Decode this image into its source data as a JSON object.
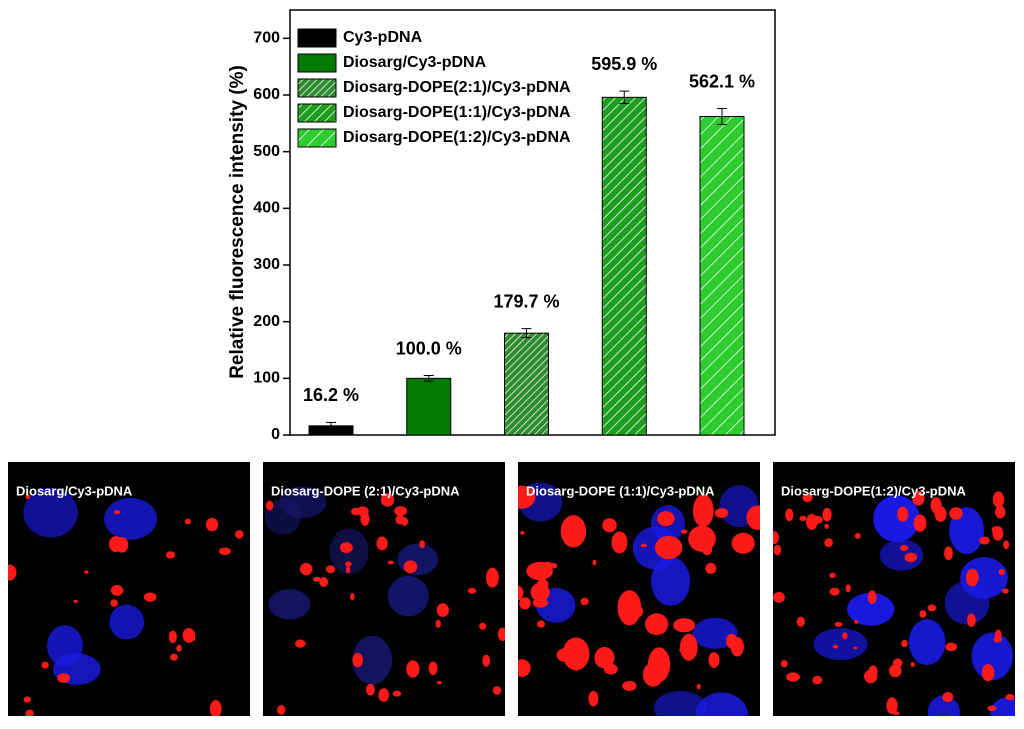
{
  "chart_data": {
    "type": "bar",
    "y_label": "Relative fluorescence intensity (%)",
    "ylim": [
      0,
      750
    ],
    "yticks": [
      0,
      100,
      200,
      300,
      400,
      500,
      600,
      700
    ],
    "series": [
      {
        "name": "Cy3-pDNA",
        "color": "#000000",
        "hatch": "none",
        "values": [
          16.2
        ],
        "errors": [
          6
        ],
        "value_labels": [
          "16.2 %"
        ]
      },
      {
        "name": "Diosarg/Cy3-pDNA",
        "color": "#007a00",
        "hatch": "none",
        "values": [
          100.0
        ],
        "errors": [
          5
        ],
        "value_labels": [
          "100.0 %"
        ]
      },
      {
        "name": "Diosarg-DOPE(2:1)/Cy3-pDNA",
        "color": "#2e8b2e",
        "hatch": "dense",
        "values": [
          179.7
        ],
        "errors": [
          8
        ],
        "value_labels": [
          "179.7 %"
        ]
      },
      {
        "name": "Diosarg-DOPE(1:1)/Cy3-pDNA",
        "color": "#1e9e1e",
        "hatch": "medium",
        "values": [
          595.9
        ],
        "errors": [
          11
        ],
        "value_labels": [
          "595.9 %"
        ]
      },
      {
        "name": "Diosarg-DOPE(1:2)/Cy3-pDNA",
        "color": "#2ecc2e",
        "hatch": "sparse",
        "values": [
          562.1
        ],
        "errors": [
          14
        ],
        "value_labels": [
          "562.1 %"
        ]
      }
    ]
  },
  "panels": [
    {
      "label": "Diosarg/Cy3-pDNA"
    },
    {
      "label": "Diosarg-DOPE (2:1)/Cy3-pDNA"
    },
    {
      "label": "Diosarg-DOPE (1:1)/Cy3-pDNA"
    },
    {
      "label": "Diosarg-DOPE(1:2)/Cy3-pDNA"
    }
  ]
}
